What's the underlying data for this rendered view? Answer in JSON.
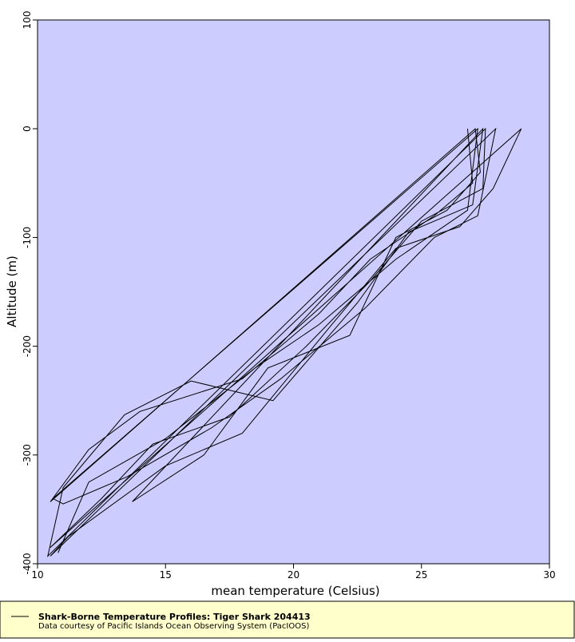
{
  "chart_data": {
    "type": "line",
    "xlabel": "mean temperature (Celsius)",
    "ylabel": "Altitude (m)",
    "xlim": [
      10,
      30
    ],
    "xticks": [
      10,
      15,
      20,
      25,
      30
    ],
    "ylim": [
      -400,
      100
    ],
    "yticks": [
      100,
      0,
      -100,
      -200,
      -300,
      -400
    ],
    "background": "#ccccff",
    "legend": {
      "title": "Shark-Borne Temperature Profiles: Tiger Shark 204413",
      "subtitle": "Data courtesy of Pacific Islands Ocean Observing System (PacIOOS)"
    },
    "series": [
      {
        "name": "Shark-Borne Temperature Profiles: Tiger Shark 204413",
        "color": "#000000",
        "x": [
          26.8,
          27,
          25.5,
          23,
          21,
          18,
          14,
          12,
          10.5,
          27.1,
          27.3,
          26,
          24,
          22.2,
          19,
          16.5,
          13.7,
          27.4,
          27,
          24.5,
          22.5,
          19.2,
          16,
          13.4,
          11,
          10.4,
          27.5,
          27.4,
          25,
          23,
          20.5,
          17.5,
          14.5,
          12.5,
          10.5,
          28.9,
          27.8,
          26.5,
          24,
          21.5,
          18,
          15,
          11.2,
          10.5,
          27.9,
          27.2,
          25.5,
          22.8,
          19.5,
          16.8,
          13.5,
          11,
          10.6,
          27.2,
          26.8,
          24,
          21,
          18.5,
          15,
          12,
          10.8
        ],
        "values": [
          0,
          -50,
          -80,
          -120,
          -170,
          -230,
          -260,
          -295,
          -343,
          0,
          -40,
          -75,
          -100,
          -190,
          -220,
          -300,
          -343,
          0,
          -70,
          -95,
          -160,
          -250,
          -232,
          -263,
          -330,
          -393,
          0,
          -55,
          -85,
          -140,
          -200,
          -265,
          -290,
          -340,
          -385,
          0,
          -55,
          -90,
          -110,
          -180,
          -280,
          -310,
          -375,
          -393,
          0,
          -80,
          -100,
          -165,
          -230,
          -275,
          -320,
          -345,
          -340,
          0,
          -75,
          -120,
          -180,
          -220,
          -285,
          -325,
          -390
        ]
      }
    ]
  }
}
